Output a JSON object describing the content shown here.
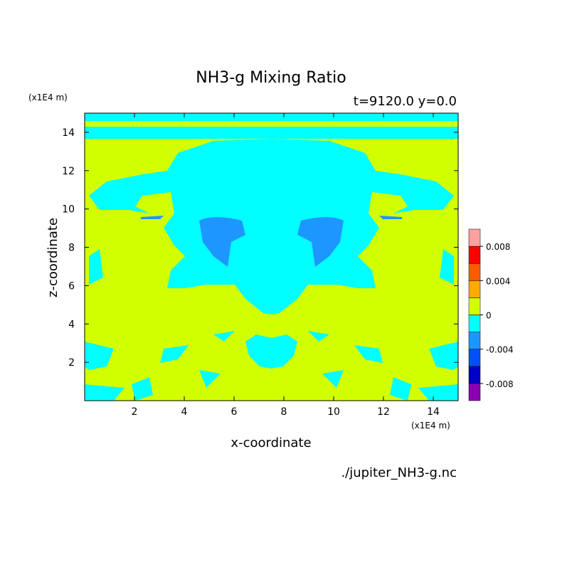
{
  "chart_data": {
    "type": "contour",
    "title": "NH3-g Mixing Ratio",
    "subtitle": "t=9120.0 y=0.0",
    "x_label": "x-coordinate",
    "y_label": "z-coordinate",
    "x_unit": "(x1E4 m)",
    "y_unit": "(x1E4 m)",
    "source": "./jupiter_NH3-g.nc",
    "xlim": [
      0,
      15
    ],
    "xticks": [
      2,
      4,
      6,
      8,
      10,
      12,
      14
    ],
    "ylim": [
      0,
      15
    ],
    "yticks": [
      2,
      4,
      6,
      8,
      10,
      12,
      14
    ],
    "colorbar": {
      "clim": [
        -0.01,
        0.01
      ],
      "levels": [
        -0.008,
        -0.006,
        -0.004,
        -0.002,
        0,
        0.002,
        0.004,
        0.006,
        0.008
      ],
      "colors": [
        "#8c00b4",
        "#0000c8",
        "#0050ff",
        "#1e96ff",
        "#00ffff",
        "#d2ff00",
        "#ffaa00",
        "#ff5a00",
        "#ff0000",
        "#ffa0a0"
      ],
      "ticks": [
        -0.008,
        -0.004,
        0,
        0.004,
        0.008
      ]
    }
  }
}
